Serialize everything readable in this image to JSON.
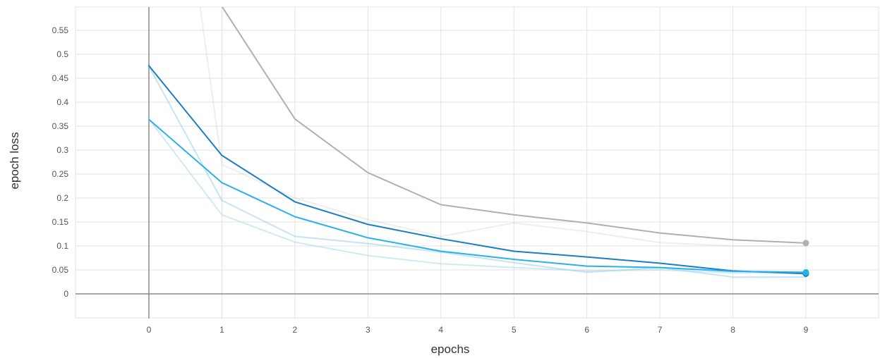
{
  "chart_data": {
    "type": "line",
    "xlabel": "epochs",
    "ylabel": "epoch loss",
    "x": [
      0,
      1,
      2,
      3,
      4,
      5,
      6,
      7,
      8,
      9
    ],
    "xlim": [
      -1,
      10
    ],
    "ylim": [
      -0.05,
      0.6
    ],
    "x_ticks": [
      "0",
      "1",
      "2",
      "3",
      "4",
      "5",
      "6",
      "7",
      "8",
      "9"
    ],
    "y_ticks": [
      {
        "value": 0,
        "label": "0"
      },
      {
        "value": 0.05,
        "label": "0.05"
      },
      {
        "value": 0.1,
        "label": "0.1"
      },
      {
        "value": 0.15,
        "label": "0.15"
      },
      {
        "value": 0.2,
        "label": "0.2"
      },
      {
        "value": 0.25,
        "label": "0.25"
      },
      {
        "value": 0.3,
        "label": "0.3"
      },
      {
        "value": 0.35,
        "label": "0.35"
      },
      {
        "value": 0.4,
        "label": "0.4"
      },
      {
        "value": 0.45,
        "label": "0.45"
      },
      {
        "value": 0.5,
        "label": "0.5"
      },
      {
        "value": 0.55,
        "label": "0.55"
      }
    ],
    "grid": true,
    "series": [
      {
        "color": "#bbbbbb",
        "opacity": 0.25,
        "values": [
          null,
          0.27,
          0.2,
          0.155,
          0.12,
          0.148,
          0.13,
          0.107,
          0.1,
          0.1
        ],
        "xstart": 0.7,
        "ystart": 0.6
      },
      {
        "color": "#b0b0b0",
        "opacity": 1,
        "values": [
          null,
          0.6,
          0.365,
          0.253,
          0.186,
          0.165,
          0.148,
          0.127,
          0.113,
          0.106
        ],
        "marker": true
      },
      {
        "color": "#90c8ee",
        "opacity": 0.5,
        "values": [
          0.475,
          0.195,
          0.12,
          0.105,
          0.087,
          0.065,
          0.045,
          0.055,
          0.035,
          0.035
        ]
      },
      {
        "color": "#a8d8f0",
        "opacity": 0.55,
        "values": [
          0.365,
          0.165,
          0.108,
          0.08,
          0.063,
          0.055,
          0.048,
          0.05,
          0.044,
          0.045
        ]
      },
      {
        "color": "#1a7ec5",
        "opacity": 1,
        "values": [
          0.476,
          0.289,
          0.192,
          0.145,
          0.115,
          0.089,
          0.077,
          0.064,
          0.048,
          0.042
        ],
        "marker": true
      },
      {
        "color": "#29b2ea",
        "opacity": 1,
        "values": [
          0.364,
          0.232,
          0.161,
          0.117,
          0.089,
          0.072,
          0.058,
          0.055,
          0.047,
          0.045
        ],
        "marker": true
      }
    ]
  }
}
